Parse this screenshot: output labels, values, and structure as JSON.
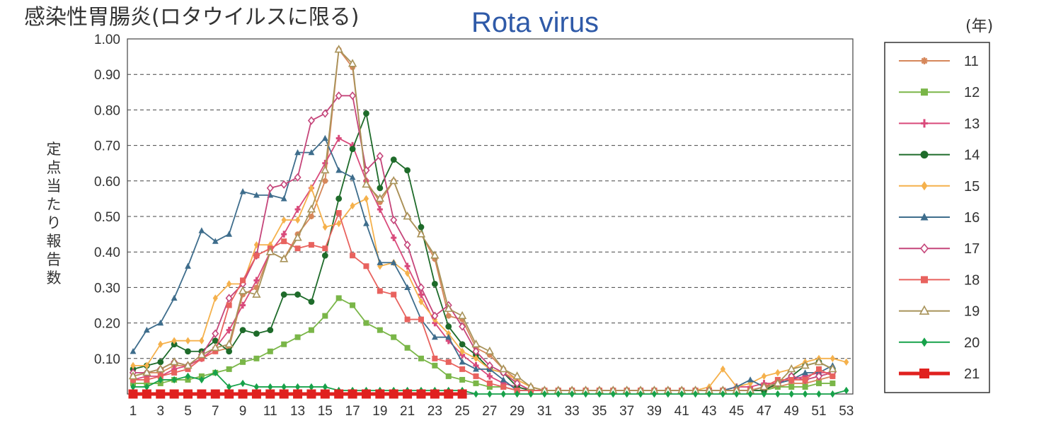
{
  "header": {
    "title_jp": "感染性胃腸炎(ロタウイルスに限る)",
    "title_en": "Rota virus",
    "unit_label": "(年)"
  },
  "chart_data": {
    "type": "line",
    "ylabel": "定点当たり報告数",
    "ylim": [
      0,
      1.0
    ],
    "yticks": [
      "0.10",
      "0.20",
      "0.30",
      "0.40",
      "0.50",
      "0.60",
      "0.70",
      "0.80",
      "0.90",
      "1.00"
    ],
    "xlim": [
      1,
      53
    ],
    "xticks": [
      "1",
      "3",
      "5",
      "7",
      "9",
      "11",
      "13",
      "15",
      "17",
      "19",
      "21",
      "23",
      "25",
      "27",
      "29",
      "31",
      "33",
      "35",
      "37",
      "39",
      "41",
      "43",
      "45",
      "47",
      "49",
      "51",
      "53"
    ],
    "grid": true,
    "legend_position": "right",
    "series": [
      {
        "name": "11",
        "color": "#d6875a",
        "marker": "asterisk",
        "values": [
          0.05,
          0.06,
          0.06,
          0.08,
          0.08,
          0.1,
          0.12,
          0.13,
          0.28,
          0.3,
          0.4,
          0.38,
          0.45,
          0.5,
          0.6,
          0.97,
          0.92,
          0.6,
          0.54,
          0.6,
          0.5,
          0.45,
          0.38,
          0.22,
          0.21,
          0.13,
          0.11,
          0.07,
          0.04,
          0.02,
          0.01,
          0.01,
          0.01,
          0.01,
          0.01,
          0.01,
          0.01,
          0.01,
          0.01,
          0.01,
          0.01,
          0.01,
          0.01,
          0.01,
          0.01,
          0.01,
          0.02,
          0.02,
          0.03,
          0.03,
          0.04,
          0.05,
          null
        ]
      },
      {
        "name": "12",
        "color": "#7ab648",
        "marker": "square",
        "values": [
          0.03,
          0.03,
          0.03,
          0.04,
          0.04,
          0.05,
          0.06,
          0.07,
          0.09,
          0.1,
          0.12,
          0.14,
          0.16,
          0.18,
          0.22,
          0.27,
          0.25,
          0.2,
          0.18,
          0.16,
          0.13,
          0.1,
          0.08,
          0.05,
          0.04,
          0.03,
          0.02,
          0.02,
          0.01,
          0.01,
          0.01,
          0.01,
          0.01,
          0.01,
          0.01,
          0.01,
          0.01,
          0.01,
          0.01,
          0.01,
          0.01,
          0.01,
          0.01,
          0.01,
          0.01,
          0.01,
          0.01,
          0.02,
          0.02,
          0.02,
          0.03,
          0.03,
          null
        ]
      },
      {
        "name": "13",
        "color": "#d94a7b",
        "marker": "plus",
        "values": [
          0.04,
          0.05,
          0.05,
          0.07,
          0.08,
          0.1,
          0.13,
          0.18,
          0.25,
          0.32,
          0.4,
          0.45,
          0.52,
          0.58,
          0.65,
          0.72,
          0.7,
          0.6,
          0.52,
          0.44,
          0.36,
          0.28,
          0.2,
          0.15,
          0.11,
          0.08,
          0.05,
          0.03,
          0.02,
          0.01,
          0.01,
          0.01,
          0.01,
          0.01,
          0.01,
          0.01,
          0.01,
          0.01,
          0.01,
          0.01,
          0.01,
          0.01,
          0.01,
          0.01,
          0.02,
          0.02,
          0.03,
          0.03,
          0.04,
          0.05,
          0.06,
          0.06,
          null
        ]
      },
      {
        "name": "14",
        "color": "#1e6b2a",
        "marker": "circle",
        "values": [
          0.07,
          0.08,
          0.09,
          0.14,
          0.12,
          0.12,
          0.15,
          0.12,
          0.18,
          0.17,
          0.18,
          0.28,
          0.28,
          0.26,
          0.39,
          0.55,
          0.69,
          0.79,
          0.58,
          0.66,
          0.63,
          0.47,
          0.31,
          0.19,
          0.14,
          0.11,
          0.07,
          0.06,
          0.02,
          0.01,
          0.01,
          0.01,
          0.01,
          0.01,
          0.01,
          0.01,
          0.01,
          0.01,
          0.01,
          0.01,
          0.01,
          0.01,
          0.01,
          0.01,
          0.01,
          0.01,
          0.01,
          0.03,
          0.05,
          0.08,
          0.09,
          0.07,
          null
        ]
      },
      {
        "name": "15",
        "color": "#f5b14c",
        "marker": "diamond",
        "values": [
          0.08,
          0.08,
          0.14,
          0.15,
          0.15,
          0.15,
          0.27,
          0.31,
          0.31,
          0.42,
          0.42,
          0.49,
          0.49,
          0.58,
          0.47,
          0.48,
          0.53,
          0.55,
          0.36,
          0.37,
          0.34,
          0.26,
          0.21,
          0.17,
          0.12,
          0.1,
          0.07,
          0.06,
          0.04,
          0.02,
          0.01,
          0.01,
          0.01,
          0.01,
          0.01,
          0.01,
          0.01,
          0.01,
          0.01,
          0.01,
          0.01,
          0.01,
          0.02,
          0.07,
          0.02,
          0.03,
          0.05,
          0.06,
          0.07,
          0.09,
          0.1,
          0.1,
          0.09
        ]
      },
      {
        "name": "16",
        "color": "#3e6d8c",
        "marker": "triangle",
        "values": [
          0.12,
          0.18,
          0.2,
          0.27,
          0.36,
          0.46,
          0.43,
          0.45,
          0.57,
          0.56,
          0.56,
          0.55,
          0.68,
          0.68,
          0.72,
          0.63,
          0.61,
          0.48,
          0.37,
          0.37,
          0.3,
          0.21,
          0.16,
          0.16,
          0.09,
          0.07,
          0.07,
          0.04,
          0.01,
          0.01,
          0.01,
          0.01,
          0.01,
          0.01,
          0.01,
          0.01,
          0.01,
          0.01,
          0.01,
          0.01,
          0.01,
          0.01,
          0.01,
          0.01,
          0.02,
          0.04,
          0.02,
          0.03,
          0.04,
          0.06,
          0.06,
          0.08,
          null
        ]
      },
      {
        "name": "17",
        "color": "#c5457a",
        "marker": "diamond-open",
        "values": [
          0.06,
          0.06,
          0.07,
          0.09,
          0.08,
          0.11,
          0.17,
          0.27,
          0.31,
          0.39,
          0.58,
          0.59,
          0.61,
          0.77,
          0.79,
          0.84,
          0.84,
          0.63,
          0.67,
          0.49,
          0.42,
          0.3,
          0.22,
          0.25,
          0.19,
          0.12,
          0.08,
          0.06,
          0.03,
          0.01,
          0.01,
          0.01,
          0.01,
          0.01,
          0.01,
          0.01,
          0.01,
          0.01,
          0.01,
          0.01,
          0.01,
          0.01,
          0.01,
          0.01,
          0.01,
          0.01,
          0.02,
          0.03,
          0.05,
          0.04,
          0.05,
          0.06,
          null
        ]
      },
      {
        "name": "18",
        "color": "#e8625e",
        "marker": "square",
        "values": [
          0.04,
          0.04,
          0.05,
          0.06,
          0.07,
          0.1,
          0.12,
          0.25,
          0.32,
          0.39,
          0.41,
          0.43,
          0.41,
          0.42,
          0.41,
          0.51,
          0.39,
          0.36,
          0.29,
          0.28,
          0.21,
          0.21,
          0.1,
          0.09,
          0.07,
          0.05,
          0.03,
          0.02,
          0.01,
          0.01,
          0.01,
          0.01,
          0.01,
          0.01,
          0.01,
          0.01,
          0.01,
          0.01,
          0.01,
          0.01,
          0.01,
          0.01,
          0.01,
          0.01,
          0.01,
          0.01,
          0.02,
          0.04,
          0.04,
          0.04,
          0.07,
          0.05,
          null
        ]
      },
      {
        "name": "19",
        "color": "#a8935a",
        "marker": "triangle-open",
        "values": [
          0.05,
          0.06,
          0.07,
          0.09,
          0.08,
          0.11,
          0.13,
          0.14,
          0.29,
          0.28,
          0.4,
          0.38,
          0.44,
          0.52,
          0.63,
          0.97,
          0.93,
          0.59,
          0.55,
          0.6,
          0.5,
          0.45,
          0.39,
          0.24,
          0.22,
          0.14,
          0.12,
          0.07,
          0.05,
          0.02,
          0.01,
          0.01,
          0.01,
          0.01,
          0.01,
          0.01,
          0.01,
          0.01,
          0.01,
          0.01,
          0.01,
          0.01,
          0.01,
          0.01,
          0.01,
          0.01,
          0.02,
          0.03,
          0.07,
          0.08,
          0.09,
          0.07,
          null
        ]
      },
      {
        "name": "20",
        "color": "#17a24a",
        "marker": "diamond",
        "values": [
          0.02,
          0.02,
          0.04,
          0.04,
          0.05,
          0.04,
          0.06,
          0.02,
          0.03,
          0.02,
          0.02,
          0.02,
          0.02,
          0.02,
          0.02,
          0.01,
          0.01,
          0.01,
          0.01,
          0.01,
          0.01,
          0.01,
          0.01,
          0.01,
          0.01,
          0.0,
          0.0,
          0.0,
          0.0,
          0.0,
          0.0,
          0.0,
          0.0,
          0.0,
          0.0,
          0.0,
          0.0,
          0.0,
          0.0,
          0.0,
          0.0,
          0.0,
          0.0,
          0.0,
          0.0,
          0.0,
          0.0,
          0.0,
          0.0,
          0.0,
          0.0,
          0.0,
          0.01
        ]
      },
      {
        "name": "21",
        "color": "#e0211f",
        "marker": "square",
        "bold": true,
        "values": [
          0.0,
          0.0,
          0.0,
          0.0,
          0.0,
          0.0,
          0.0,
          0.0,
          0.0,
          0.0,
          0.0,
          0.0,
          0.0,
          0.0,
          0.0,
          0.0,
          0.0,
          0.0,
          0.0,
          0.0,
          0.0,
          0.0,
          0.0,
          0.0,
          0.0,
          null,
          null,
          null,
          null,
          null,
          null,
          null,
          null,
          null,
          null,
          null,
          null,
          null,
          null,
          null,
          null,
          null,
          null,
          null,
          null,
          null,
          null,
          null,
          null,
          null,
          null,
          null,
          null
        ]
      }
    ]
  }
}
